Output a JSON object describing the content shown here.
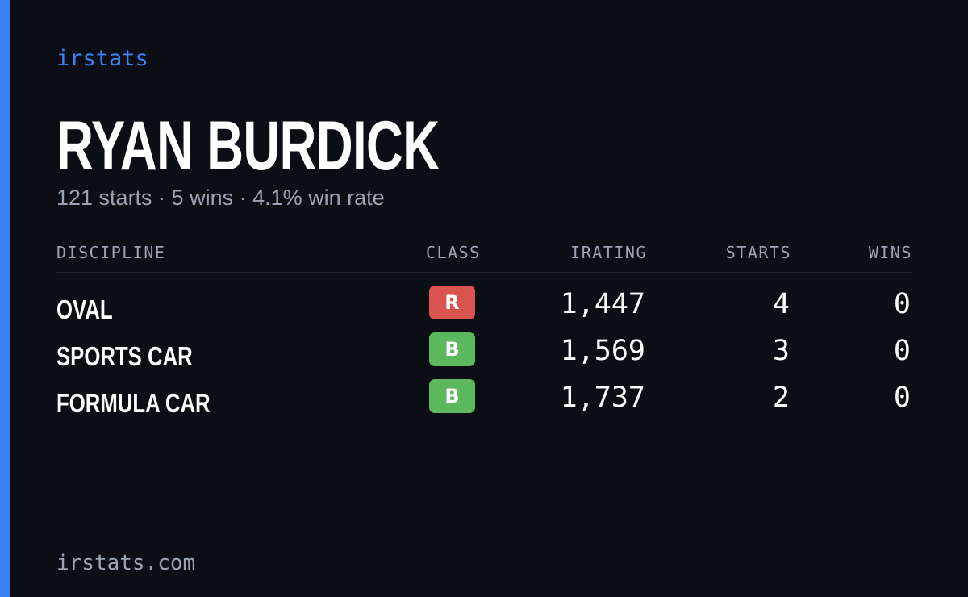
{
  "brand": "irstats",
  "profile": {
    "name": "RYAN BURDICK",
    "summary": "121 starts · 5 wins · 4.1% win rate"
  },
  "table": {
    "headers": [
      "DISCIPLINE",
      "CLASS",
      "IRATING",
      "STARTS",
      "WINS"
    ],
    "rows": [
      {
        "discipline": "OVAL",
        "class": "R",
        "class_color": "#d9534f",
        "irating": "1,447",
        "starts": "4",
        "wins": "0"
      },
      {
        "discipline": "SPORTS CAR",
        "class": "B",
        "class_color": "#5cb85c",
        "irating": "1,569",
        "starts": "3",
        "wins": "0"
      },
      {
        "discipline": "FORMULA CAR",
        "class": "B",
        "class_color": "#5cb85c",
        "irating": "1,737",
        "starts": "2",
        "wins": "0"
      }
    ]
  },
  "footer": "irstats.com"
}
